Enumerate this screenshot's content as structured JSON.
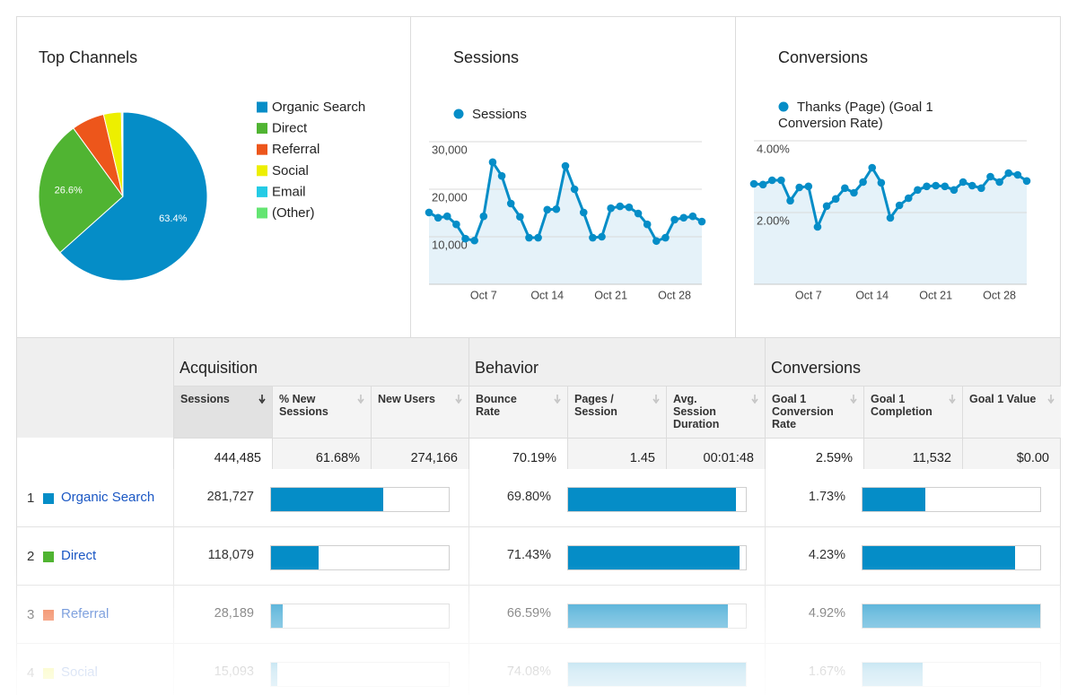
{
  "chart_data": [
    {
      "type": "pie",
      "title": "Top Channels",
      "categories": [
        "Organic Search",
        "Direct",
        "Referral",
        "Social",
        "Email",
        "(Other)"
      ],
      "values": [
        63.4,
        26.6,
        6.3,
        3.4,
        0.2,
        0.1
      ],
      "value_labels": [
        "63.4%",
        "26.6%",
        null,
        null,
        null,
        null
      ],
      "colors": [
        "#058dc7",
        "#50b432",
        "#ed561b",
        "#edef00",
        "#24cbe5",
        "#64e572"
      ]
    },
    {
      "type": "line",
      "title": "Sessions",
      "categories": [
        "Oct 1",
        "Oct 2",
        "Oct 3",
        "Oct 4",
        "Oct 5",
        "Oct 6",
        "Oct 7",
        "Oct 8",
        "Oct 9",
        "Oct 10",
        "Oct 11",
        "Oct 12",
        "Oct 13",
        "Oct 14",
        "Oct 15",
        "Oct 16",
        "Oct 17",
        "Oct 18",
        "Oct 19",
        "Oct 20",
        "Oct 21",
        "Oct 22",
        "Oct 23",
        "Oct 24",
        "Oct 25",
        "Oct 26",
        "Oct 27",
        "Oct 28",
        "Oct 29",
        "Oct 30",
        "Oct 31"
      ],
      "xticks": [
        "Oct 7",
        "Oct 14",
        "Oct 21",
        "Oct 28"
      ],
      "series": [
        {
          "name": "Sessions",
          "color": "#058dc7",
          "values": [
            15100,
            14000,
            14300,
            12600,
            9600,
            9200,
            14300,
            25700,
            22800,
            17000,
            14200,
            9800,
            9800,
            15700,
            15800,
            24900,
            20000,
            15100,
            9800,
            10000,
            16000,
            16400,
            16200,
            14900,
            12600,
            9100,
            9800,
            13600,
            14000,
            14300,
            13200
          ]
        }
      ],
      "ylim": [
        0,
        30000
      ],
      "yticks": [
        {
          "value": 10000,
          "label": "10,000"
        },
        {
          "value": 20000,
          "label": "20,000"
        },
        {
          "value": 30000,
          "label": "30,000"
        }
      ],
      "grid": true
    },
    {
      "type": "line",
      "title": "Conversions",
      "categories": [
        "Oct 1",
        "Oct 2",
        "Oct 3",
        "Oct 4",
        "Oct 5",
        "Oct 6",
        "Oct 7",
        "Oct 8",
        "Oct 9",
        "Oct 10",
        "Oct 11",
        "Oct 12",
        "Oct 13",
        "Oct 14",
        "Oct 15",
        "Oct 16",
        "Oct 17",
        "Oct 18",
        "Oct 19",
        "Oct 20",
        "Oct 21",
        "Oct 22",
        "Oct 23",
        "Oct 24",
        "Oct 25",
        "Oct 26",
        "Oct 27",
        "Oct 28",
        "Oct 29",
        "Oct 30",
        "Oct 31"
      ],
      "xticks": [
        "Oct 7",
        "Oct 14",
        "Oct 21",
        "Oct 28"
      ],
      "series": [
        {
          "name": "Thanks (Page) (Goal 1 Conversion Rate)",
          "color": "#058dc7",
          "values": [
            2.8,
            2.78,
            2.9,
            2.9,
            2.33,
            2.7,
            2.73,
            1.6,
            2.18,
            2.38,
            2.68,
            2.55,
            2.85,
            3.25,
            2.83,
            1.85,
            2.2,
            2.4,
            2.63,
            2.73,
            2.75,
            2.73,
            2.63,
            2.85,
            2.75,
            2.68,
            3.0,
            2.85,
            3.1,
            3.05,
            2.88
          ]
        }
      ],
      "ylim": [
        0,
        4
      ],
      "yticks": [
        {
          "value": 2,
          "label": "2.00%"
        },
        {
          "value": 4,
          "label": "4.00%"
        }
      ],
      "grid": true
    }
  ],
  "table": {
    "groups": [
      "Acquisition",
      "Behavior",
      "Conversions"
    ],
    "columns": [
      "Sessions",
      "% New Sessions",
      "New Users",
      "Bounce Rate",
      "Pages / Session",
      "Avg. Session Duration",
      "Goal 1 Conversion Rate",
      "Goal 1 Completion",
      "Goal 1 Value"
    ],
    "totals": [
      {
        "value": 444485,
        "label": "444,485"
      },
      "61.68%",
      "274,166",
      "70.19%",
      "1.45",
      "00:01:48",
      "2.59%",
      "11,532",
      "$0.00"
    ],
    "rows": [
      {
        "rank": "1",
        "channel": "Organic Search",
        "color": "#058dc7",
        "sessions": {
          "value": 281727,
          "label": "281,727"
        },
        "bounce_rate": {
          "value": 69.8,
          "label": "69.80%"
        },
        "conversion_rate": {
          "value": 1.73,
          "label": "1.73%"
        }
      },
      {
        "rank": "2",
        "channel": "Direct",
        "color": "#50b432",
        "sessions": {
          "value": 118079,
          "label": "118,079"
        },
        "bounce_rate": {
          "value": 71.43,
          "label": "71.43%"
        },
        "conversion_rate": {
          "value": 4.23,
          "label": "4.23%"
        }
      },
      {
        "rank": "3",
        "channel": "Referral",
        "color": "#ed561b",
        "sessions": {
          "value": 28189,
          "label": "28,189"
        },
        "bounce_rate": {
          "value": 66.59,
          "label": "66.59%"
        },
        "conversion_rate": {
          "value": 4.92,
          "label": "4.92%"
        }
      },
      {
        "rank": "4",
        "channel": "Social",
        "color": "#edef00",
        "sessions": {
          "value": 15093,
          "label": "15,093"
        },
        "bounce_rate": {
          "value": 74.08,
          "label": "74.08%"
        },
        "conversion_rate": {
          "value": 1.67,
          "label": "1.67%"
        }
      }
    ]
  }
}
